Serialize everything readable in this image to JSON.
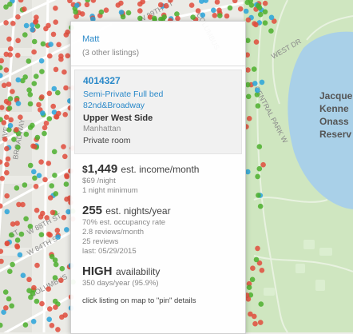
{
  "map": {
    "street_labels": [
      "W 89TH ST",
      "COLUMBUS",
      "WEST DR",
      "CENTRAL PARK W",
      "BROADWAY",
      "AVE",
      "W 88TH ST",
      "W 84TH ST",
      "COLUMBUS",
      "ST"
    ],
    "park_label_lines": [
      "Jacque",
      "Kenne",
      "Onass",
      "Reserv"
    ],
    "dot_colors": {
      "entire_home": "#e04c3c",
      "private_room": "#4caf2d",
      "shared_room": "#29a3d9"
    }
  },
  "panel": {
    "host": {
      "name": "Matt",
      "other_listings": "(3 other listings)"
    },
    "listing": {
      "id": "4014327",
      "title_line1": "Semi-Private Full bed",
      "title_line2": "82nd&Broadway",
      "neighbourhood": "Upper West Side",
      "borough": "Manhattan",
      "room_type": "Private room"
    },
    "income": {
      "currency": "$",
      "amount": "1,449",
      "unit": "est. income/month",
      "per_night": "$69 /night",
      "minimum": "1 night minimum"
    },
    "nights": {
      "value": "255",
      "unit": "est. nights/year",
      "occupancy": "70% est. occupancy rate",
      "reviews_per_month": "2.8 reviews/month",
      "reviews": "25 reviews",
      "last": "last: 05/29/2015"
    },
    "availability": {
      "level": "HIGH",
      "unit": "availability",
      "days": "350 days/year (95.9%)"
    },
    "hint": "click listing on map to \"pin\" details"
  }
}
